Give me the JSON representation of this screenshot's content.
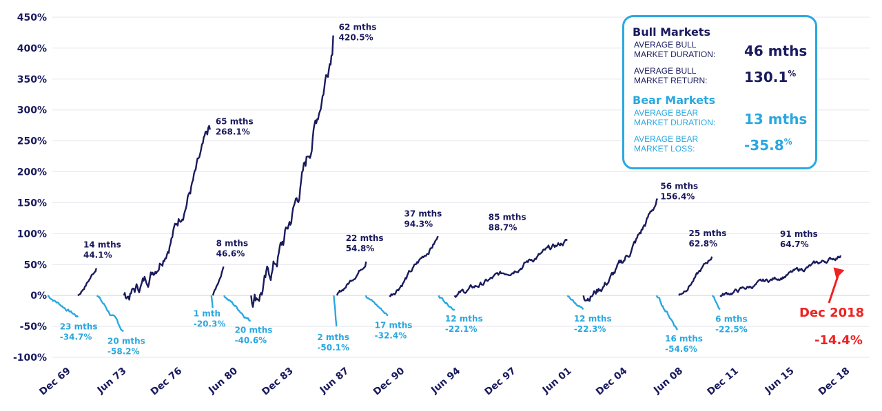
{
  "chart_data": {
    "type": "line",
    "title": "",
    "xlabel": "",
    "ylabel": "",
    "ylim": [
      -100,
      450
    ],
    "y_ticks": [
      "-100%",
      "-50%",
      "0%",
      "50%",
      "100%",
      "150%",
      "200%",
      "250%",
      "300%",
      "350%",
      "400%",
      "450%"
    ],
    "x_ticks": [
      "Dec 69",
      "Jun 73",
      "Dec 76",
      "Jun 80",
      "Dec 83",
      "Jun 87",
      "Dec 90",
      "Jun 94",
      "Dec 97",
      "Jun 01",
      "Dec 04",
      "Jun 08",
      "Dec 11",
      "Jun 15",
      "Dec 18"
    ],
    "x_tick_years": [
      1969.96,
      1973.46,
      1976.96,
      1980.46,
      1983.96,
      1987.46,
      1990.96,
      1994.46,
      1997.96,
      2001.46,
      2004.96,
      2008.46,
      2011.96,
      2015.46,
      2018.96
    ],
    "x_range": [
      1969.3,
      2020.7
    ],
    "grid": true,
    "series": [
      {
        "name": "Bear",
        "kind": "bear",
        "start": 1969.0,
        "duration_label": "23 mths",
        "value_label": "-34.7%",
        "months": 23,
        "end_value": -34.7
      },
      {
        "name": "Bull",
        "kind": "bull",
        "start": 1970.9,
        "duration_label": "14 mths",
        "value_label": "44.1%",
        "months": 14,
        "end_value": 44.1
      },
      {
        "name": "Bear",
        "kind": "bear",
        "start": 1972.1,
        "duration_label": "20 mths",
        "value_label": "-58.2%",
        "months": 20,
        "end_value": -58.2
      },
      {
        "name": "Bull",
        "kind": "bull",
        "start": 1973.8,
        "duration_label": "65 mths",
        "value_label": "268.1%",
        "months": 65,
        "end_value": 268.1
      },
      {
        "name": "Bear",
        "kind": "bear",
        "start": 1979.3,
        "duration_label": "1 mth",
        "value_label": "-20.3%",
        "months": 1,
        "end_value": -20.3
      },
      {
        "name": "Bull",
        "kind": "bull",
        "start": 1979.4,
        "duration_label": "8 mths",
        "value_label": "46.6%",
        "months": 8,
        "end_value": 46.6
      },
      {
        "name": "Bear",
        "kind": "bear",
        "start": 1980.1,
        "duration_label": "20 mths",
        "value_label": "-40.6%",
        "months": 20,
        "end_value": -40.6
      },
      {
        "name": "Bull",
        "kind": "bull",
        "start": 1981.8,
        "duration_label": "62 mths",
        "value_label": "420.5%",
        "months": 62,
        "end_value": 420.5
      },
      {
        "name": "Bear",
        "kind": "bear",
        "start": 1987.0,
        "duration_label": "2 mths",
        "value_label": "-50.1%",
        "months": 2,
        "end_value": -50.1
      },
      {
        "name": "Bull",
        "kind": "bull",
        "start": 1987.2,
        "duration_label": "22 mths",
        "value_label": "54.8%",
        "months": 22,
        "end_value": 54.8
      },
      {
        "name": "Bear",
        "kind": "bear",
        "start": 1989.0,
        "duration_label": "17 mths",
        "value_label": "-32.4%",
        "months": 17,
        "end_value": -32.4
      },
      {
        "name": "Bull",
        "kind": "bull",
        "start": 1990.5,
        "duration_label": "37 mths",
        "value_label": "94.3%",
        "months": 37,
        "end_value": 94.3
      },
      {
        "name": "Bear",
        "kind": "bear",
        "start": 1993.6,
        "duration_label": "12 mths",
        "value_label": "-22.1%",
        "months": 12,
        "end_value": -22.1
      },
      {
        "name": "Bull",
        "kind": "bull",
        "start": 1994.6,
        "duration_label": "85 mths",
        "value_label": "88.7%",
        "months": 85,
        "end_value": 88.7
      },
      {
        "name": "Bear",
        "kind": "bear",
        "start": 2001.7,
        "duration_label": "12 mths",
        "value_label": "-22.3%",
        "months": 12,
        "end_value": -22.3
      },
      {
        "name": "Bull",
        "kind": "bull",
        "start": 2002.7,
        "duration_label": "56 mths",
        "value_label": "156.4%",
        "months": 56,
        "end_value": 156.4
      },
      {
        "name": "Bear",
        "kind": "bear",
        "start": 2007.3,
        "duration_label": "16 mths",
        "value_label": "-54.6%",
        "months": 16,
        "end_value": -54.6
      },
      {
        "name": "Bull",
        "kind": "bull",
        "start": 2008.7,
        "duration_label": "25 mths",
        "value_label": "62.8%",
        "months": 25,
        "end_value": 62.8
      },
      {
        "name": "Bear",
        "kind": "bear",
        "start": 2010.8,
        "duration_label": "6 mths",
        "value_label": "-22.5%",
        "months": 6,
        "end_value": -22.5
      },
      {
        "name": "Bull",
        "kind": "bull",
        "start": 2011.3,
        "duration_label": "91 mths",
        "value_label": "64.7%",
        "months": 91,
        "end_value": 64.7
      }
    ],
    "annotation": {
      "label": "Dec 2018",
      "value": "-14.4%",
      "year": 2018.6,
      "level": 41.0
    }
  },
  "summary": {
    "bull_title": "Bull Markets",
    "avg_bull_duration_label_1": "AVERAGE BULL",
    "avg_bull_duration_label_2": "MARKET DURATION:",
    "avg_bull_duration_value": "46 mths",
    "avg_bull_return_label_1": "AVERAGE BULL",
    "avg_bull_return_label_2": "MARKET RETURN:",
    "avg_bull_return_value": "130.1",
    "avg_bull_return_unit": "%",
    "bear_title": "Bear Markets",
    "avg_bear_duration_label_1": "AVERAGE BEAR",
    "avg_bear_duration_label_2": "MARKET DURATION:",
    "avg_bear_duration_value": "13 mths",
    "avg_bear_loss_label_1": "AVERAGE BEAR",
    "avg_bear_loss_label_2": "MARKET LOSS:",
    "avg_bear_loss_value": "-35.8",
    "avg_bear_loss_unit": "%"
  },
  "colors": {
    "bull": "#1a1a5e",
    "bear": "#29a8e0",
    "callout": "#ee2222",
    "border": "#29a8e0"
  }
}
